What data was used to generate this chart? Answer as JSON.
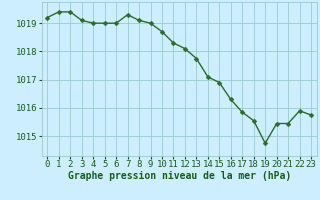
{
  "x": [
    0,
    1,
    2,
    3,
    4,
    5,
    6,
    7,
    8,
    9,
    10,
    11,
    12,
    13,
    14,
    15,
    16,
    17,
    18,
    19,
    20,
    21,
    22,
    23
  ],
  "y": [
    1019.2,
    1019.4,
    1019.4,
    1019.1,
    1019.0,
    1019.0,
    1019.0,
    1019.3,
    1019.1,
    1019.0,
    1018.7,
    1018.3,
    1018.1,
    1017.75,
    1017.1,
    1016.9,
    1016.3,
    1015.85,
    1015.55,
    1014.75,
    1015.45,
    1015.45,
    1015.9,
    1015.75
  ],
  "line_color": "#2d6a2d",
  "marker_color": "#2d6a2d",
  "bg_color": "#cceeff",
  "grid_color": "#99cccc",
  "ylabel_ticks": [
    1015,
    1016,
    1017,
    1018,
    1019
  ],
  "xlabel_label": "Graphe pression niveau de la mer (hPa)",
  "ylim": [
    1014.3,
    1019.75
  ],
  "xlim": [
    -0.5,
    23.5
  ],
  "text_color": "#1a5c1a",
  "label_fontsize": 7.0,
  "tick_fontsize": 6.5,
  "marker_size": 2.5,
  "line_width": 1.0
}
